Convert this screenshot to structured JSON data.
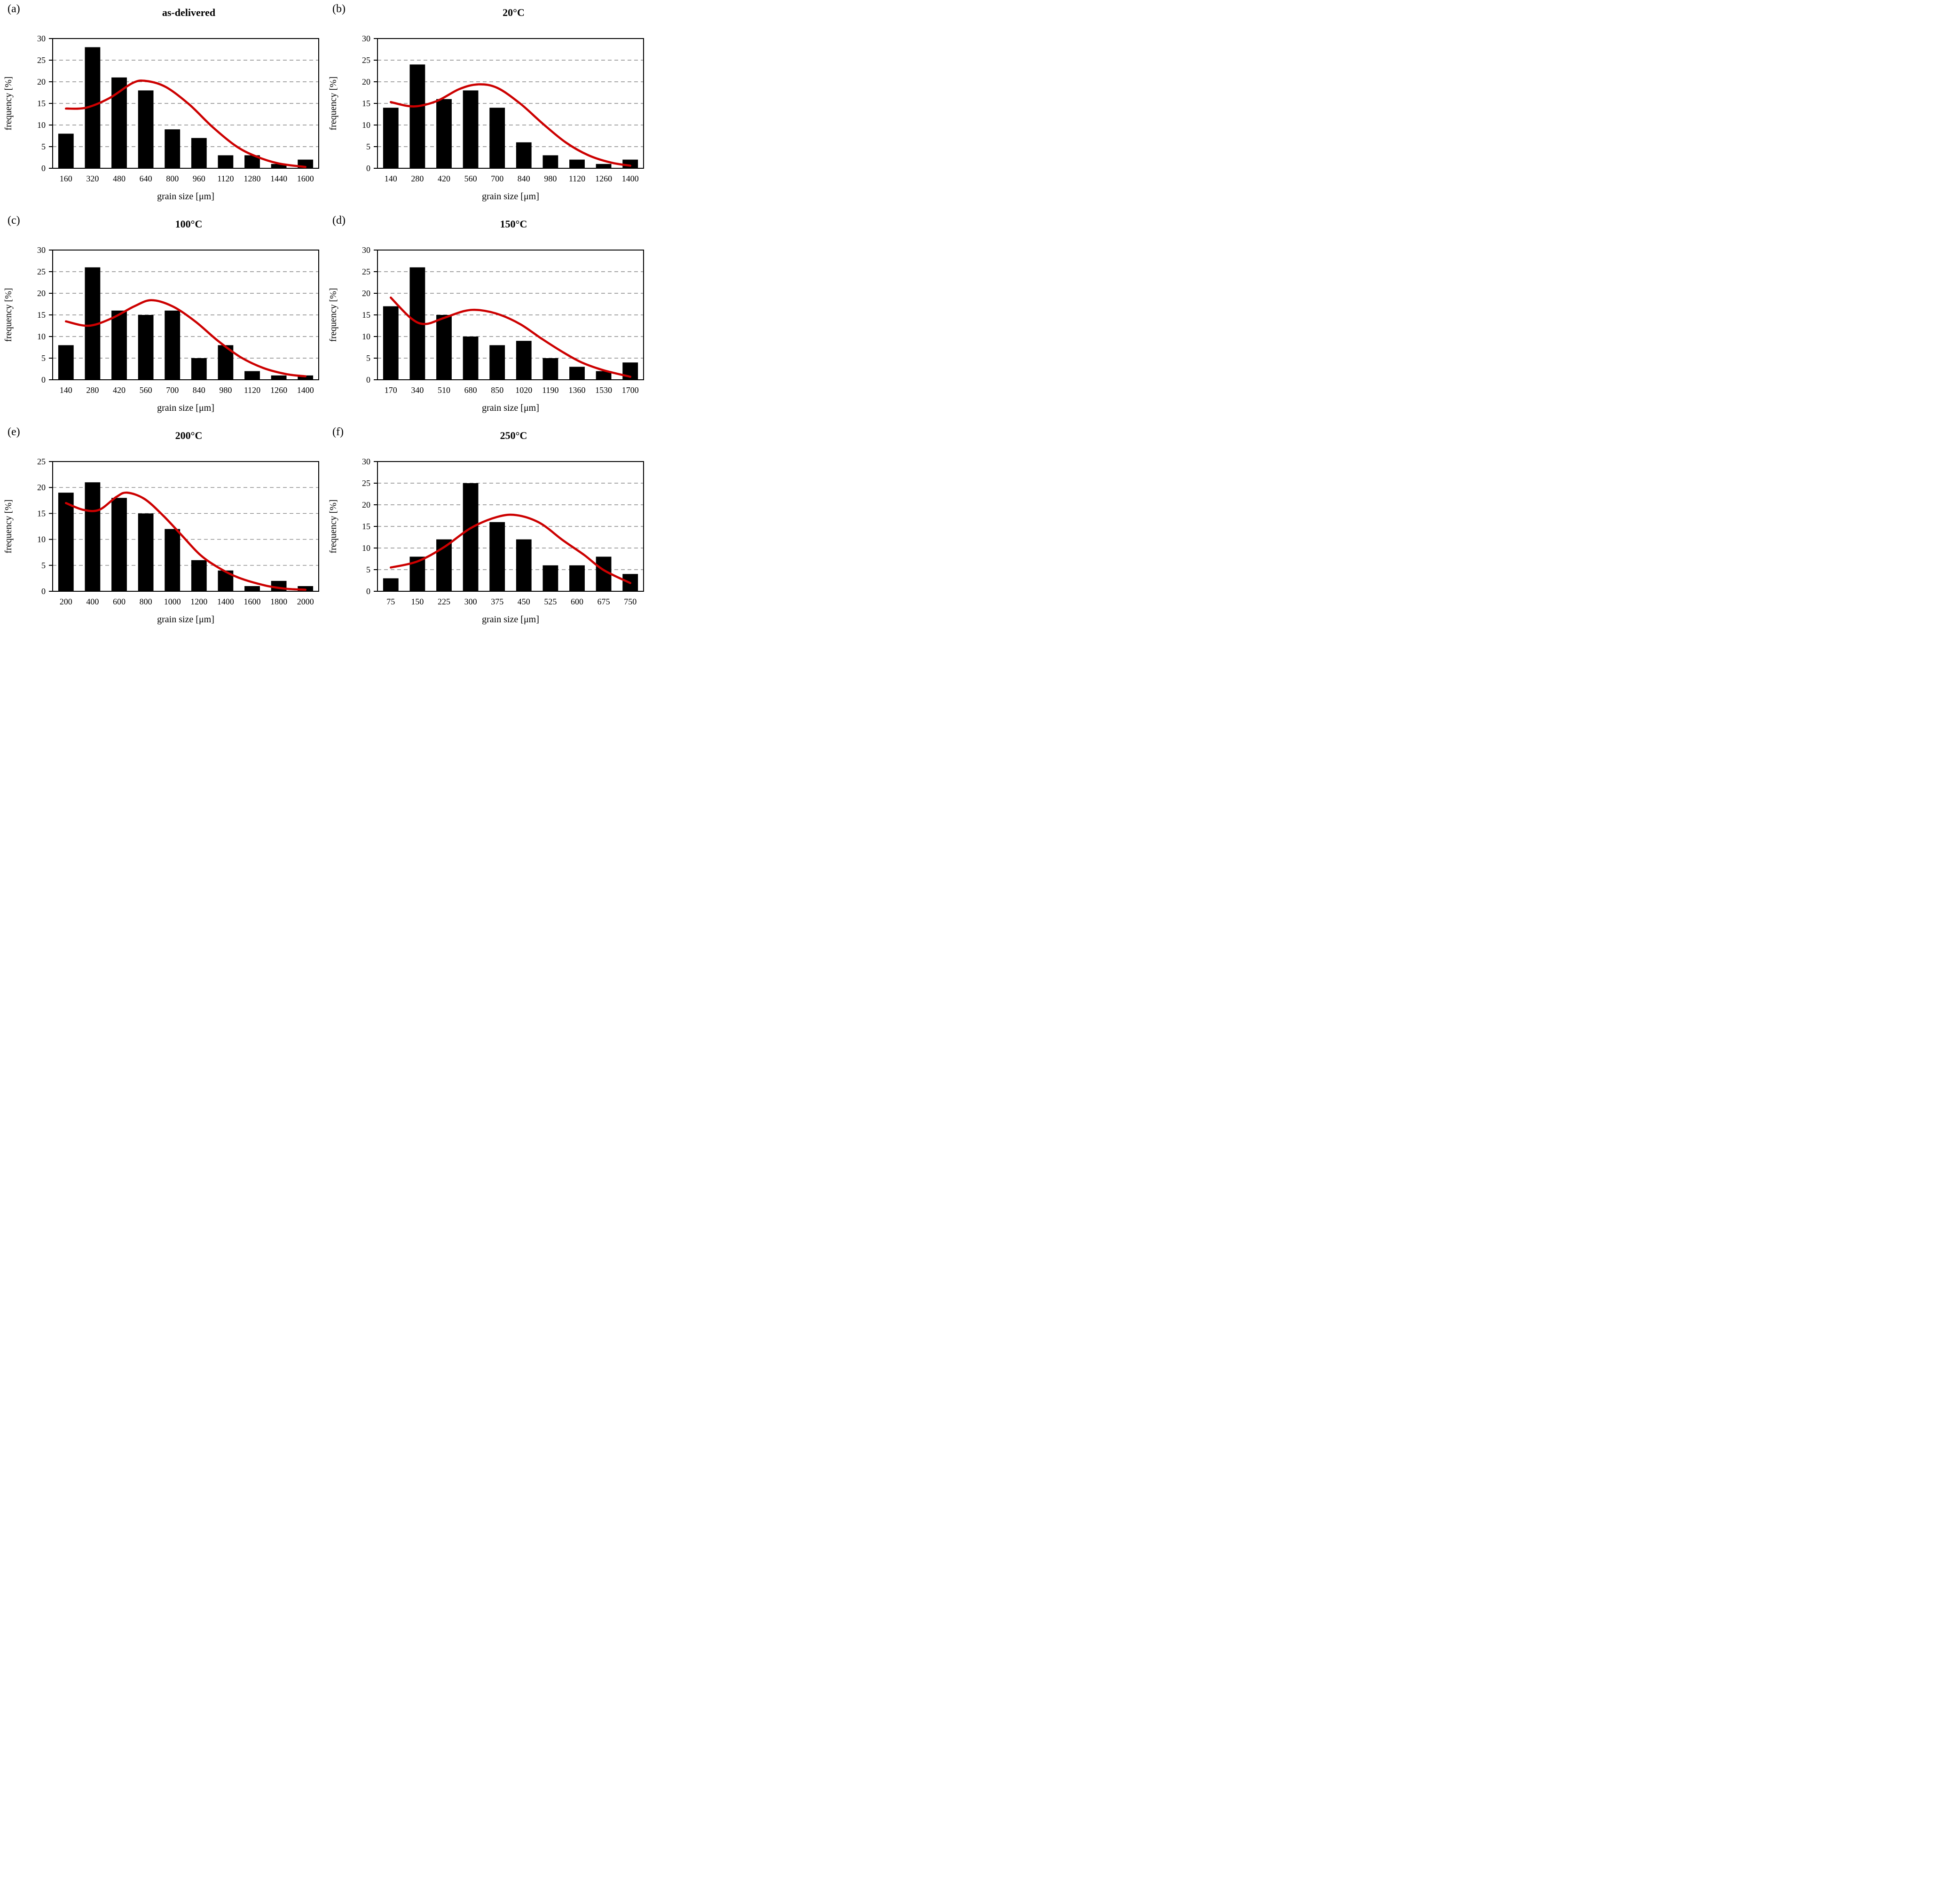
{
  "colors": {
    "bar": "#000000",
    "curve": "#cc0000",
    "grid": "#8a8a8a",
    "axis": "#000000",
    "background": "#ffffff"
  },
  "chart_data": [
    {
      "type": "bar",
      "panel_label": "(a)",
      "title": "as-delivered",
      "xlabel": "grain size [μm]",
      "ylabel": "frequency [%]",
      "ylim": [
        0,
        30
      ],
      "ytick_step": 5,
      "grid": "horizontal-dashed",
      "legend": "none",
      "categories": [
        160,
        320,
        480,
        640,
        800,
        960,
        1120,
        1280,
        1440,
        1600
      ],
      "values": [
        8,
        28,
        21,
        18,
        9,
        7,
        3,
        3,
        1,
        2
      ],
      "curve_points": [
        [
          160,
          13.8
        ],
        [
          280,
          14.0
        ],
        [
          420,
          16.2
        ],
        [
          560,
          19.7
        ],
        [
          640,
          20.2
        ],
        [
          760,
          18.8
        ],
        [
          900,
          14.8
        ],
        [
          1040,
          9.6
        ],
        [
          1180,
          5.2
        ],
        [
          1300,
          2.8
        ],
        [
          1440,
          1.1
        ],
        [
          1600,
          0.3
        ]
      ]
    },
    {
      "type": "bar",
      "panel_label": "(b)",
      "title": "20°C",
      "xlabel": "grain size [μm]",
      "ylabel": "frequency [%]",
      "ylim": [
        0,
        30
      ],
      "ytick_step": 5,
      "grid": "horizontal-dashed",
      "legend": "none",
      "categories": [
        140,
        280,
        420,
        560,
        700,
        840,
        980,
        1120,
        1260,
        1400
      ],
      "values": [
        14,
        24,
        16,
        18,
        14,
        6,
        3,
        2,
        1,
        2
      ],
      "curve_points": [
        [
          140,
          15.3
        ],
        [
          260,
          14.3
        ],
        [
          380,
          15.5
        ],
        [
          500,
          18.3
        ],
        [
          600,
          19.4
        ],
        [
          700,
          18.6
        ],
        [
          820,
          15.0
        ],
        [
          940,
          10.3
        ],
        [
          1060,
          6.0
        ],
        [
          1180,
          3.0
        ],
        [
          1300,
          1.3
        ],
        [
          1400,
          0.6
        ]
      ]
    },
    {
      "type": "bar",
      "panel_label": "(c)",
      "title": "100°C",
      "xlabel": "grain size [μm]",
      "ylabel": "frequency [%]",
      "ylim": [
        0,
        30
      ],
      "ytick_step": 5,
      "grid": "horizontal-dashed",
      "legend": "none",
      "categories": [
        140,
        280,
        420,
        560,
        700,
        840,
        980,
        1120,
        1260,
        1400
      ],
      "values": [
        8,
        26,
        16,
        15,
        16,
        5,
        8,
        2,
        1,
        1
      ],
      "curve_points": [
        [
          140,
          13.5
        ],
        [
          260,
          12.5
        ],
        [
          380,
          14.2
        ],
        [
          500,
          17.0
        ],
        [
          590,
          18.4
        ],
        [
          700,
          17.0
        ],
        [
          820,
          13.5
        ],
        [
          940,
          9.0
        ],
        [
          1060,
          5.2
        ],
        [
          1180,
          2.7
        ],
        [
          1300,
          1.3
        ],
        [
          1400,
          0.8
        ]
      ]
    },
    {
      "type": "bar",
      "panel_label": "(d)",
      "title": "150°C",
      "xlabel": "grain size [μm]",
      "ylabel": "frequency [%]",
      "ylim": [
        0,
        30
      ],
      "ytick_step": 5,
      "grid": "horizontal-dashed",
      "legend": "none",
      "categories": [
        170,
        340,
        510,
        680,
        850,
        1020,
        1190,
        1360,
        1530,
        1700
      ],
      "values": [
        17,
        26,
        15,
        10,
        8,
        9,
        5,
        3,
        2,
        4
      ],
      "curve_points": [
        [
          170,
          19.0
        ],
        [
          300,
          14.2
        ],
        [
          390,
          12.9
        ],
        [
          510,
          14.3
        ],
        [
          640,
          15.9
        ],
        [
          740,
          16.1
        ],
        [
          870,
          15.0
        ],
        [
          1000,
          12.8
        ],
        [
          1130,
          9.6
        ],
        [
          1260,
          6.6
        ],
        [
          1390,
          4.0
        ],
        [
          1530,
          2.2
        ],
        [
          1700,
          0.7
        ]
      ]
    },
    {
      "type": "bar",
      "panel_label": "(e)",
      "title": "200°C",
      "xlabel": "grain size [μm]",
      "ylabel": "frequency [%]",
      "ylim": [
        0,
        25
      ],
      "ytick_step": 5,
      "grid": "horizontal-dashed",
      "legend": "none",
      "categories": [
        200,
        400,
        600,
        800,
        1000,
        1200,
        1400,
        1600,
        1800,
        2000
      ],
      "values": [
        19,
        21,
        18,
        15,
        12,
        6,
        4,
        1,
        2,
        1
      ],
      "curve_points": [
        [
          200,
          17.0
        ],
        [
          330,
          15.7
        ],
        [
          450,
          15.7
        ],
        [
          580,
          18.2
        ],
        [
          660,
          19.0
        ],
        [
          790,
          17.8
        ],
        [
          930,
          14.6
        ],
        [
          1070,
          10.8
        ],
        [
          1210,
          7.0
        ],
        [
          1350,
          4.5
        ],
        [
          1500,
          2.6
        ],
        [
          1700,
          1.1
        ],
        [
          1850,
          0.5
        ],
        [
          2000,
          0.3
        ]
      ]
    },
    {
      "type": "bar",
      "panel_label": "(f)",
      "title": "250°C",
      "xlabel": "grain size [μm]",
      "ylabel": "frequency [%]",
      "ylim": [
        0,
        30
      ],
      "ytick_step": 5,
      "grid": "horizontal-dashed",
      "legend": "none",
      "categories": [
        75,
        150,
        225,
        300,
        375,
        450,
        525,
        600,
        675,
        750
      ],
      "values": [
        3,
        8,
        12,
        25,
        16,
        12,
        6,
        6,
        8,
        4
      ],
      "curve_points": [
        [
          75,
          5.5
        ],
        [
          150,
          6.9
        ],
        [
          225,
          10.2
        ],
        [
          300,
          14.6
        ],
        [
          375,
          17.2
        ],
        [
          430,
          17.6
        ],
        [
          495,
          15.8
        ],
        [
          560,
          11.8
        ],
        [
          620,
          8.4
        ],
        [
          675,
          4.9
        ],
        [
          750,
          1.9
        ]
      ]
    }
  ]
}
